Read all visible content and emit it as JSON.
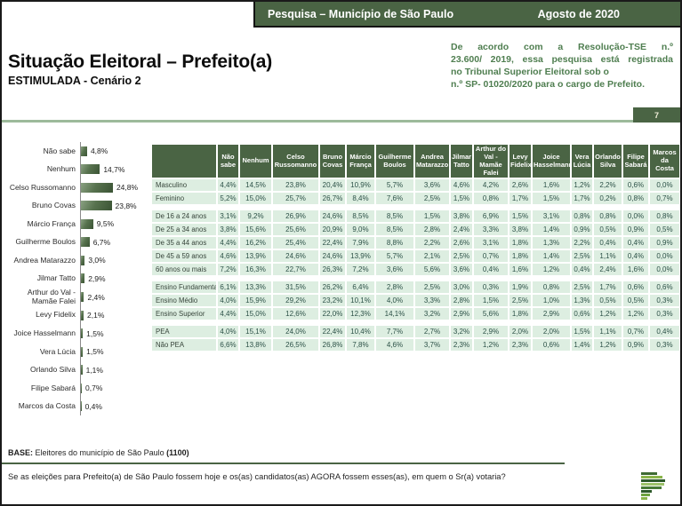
{
  "header": {
    "left": "Pesquisa – Município de São Paulo",
    "right": "Agosto de 2020"
  },
  "registration_note": {
    "lines": [
      "De acordo com a Resolução-TSE n.º",
      "23.600/ 2019, essa pesquisa está registrada",
      "no Tribunal Superior Eleitoral sob o",
      "n.º SP- 01020/2020 para o cargo de Prefeito."
    ]
  },
  "page_number": "7",
  "title": {
    "main": "Situação Eleitoral – Prefeito(a)",
    "sub": "ESTIMULADA - Cenário 2"
  },
  "chart_data": [
    {
      "type": "bar",
      "orientation": "horizontal",
      "title": "Situação Eleitoral – Prefeito(a) – ESTIMULADA - Cenário 2",
      "unit": "%",
      "xlim": [
        0,
        30
      ],
      "categories": [
        "Não sabe",
        "Nenhum",
        "Celso Russomanno",
        "Bruno Covas",
        "Márcio França",
        "Guilherme Boulos",
        "Andrea Matarazzo",
        "Jilmar Tatto",
        "Arthur do Val - Mamãe Falei",
        "Levy Fidelix",
        "Joice Hasselmann",
        "Vera Lúcia",
        "Orlando Silva",
        "Filipe Sabará",
        "Marcos da Costa"
      ],
      "values": [
        4.8,
        14.7,
        24.8,
        23.8,
        9.5,
        6.7,
        3.0,
        2.9,
        2.4,
        2.1,
        1.5,
        1.5,
        1.1,
        0.7,
        0.4
      ],
      "value_labels": [
        "4,8%",
        "14,7%",
        "24,8%",
        "23,8%",
        "9,5%",
        "6,7%",
        "3,0%",
        "2,9%",
        "2,4%",
        "2,1%",
        "1,5%",
        "1,5%",
        "1,1%",
        "0,7%",
        "0,4%"
      ]
    },
    {
      "type": "table",
      "columns": [
        "Não sabe",
        "Nenhum",
        "Celso Russomanno",
        "Bruno Covas",
        "Márcio França",
        "Guilherme Boulos",
        "Andrea Matarazzo",
        "Jilmar Tatto",
        "Arthur do Val - Mamãe Falei",
        "Levy Fidelix",
        "Joice Hasselmann",
        "Vera Lúcia",
        "Orlando Silva",
        "Filipe Sabará",
        "Marcos da Costa"
      ],
      "row_groups": [
        [
          {
            "label": "Masculino",
            "values": [
              "4,4%",
              "14,5%",
              "23,8%",
              "20,4%",
              "10,9%",
              "5,7%",
              "3,6%",
              "4,6%",
              "4,2%",
              "2,6%",
              "1,6%",
              "1,2%",
              "2,2%",
              "0,6%",
              "0,0%"
            ]
          },
          {
            "label": "Feminino",
            "values": [
              "5,2%",
              "15,0%",
              "25,7%",
              "26,7%",
              "8,4%",
              "7,6%",
              "2,5%",
              "1,5%",
              "0,8%",
              "1,7%",
              "1,5%",
              "1,7%",
              "0,2%",
              "0,8%",
              "0,7%"
            ]
          }
        ],
        [
          {
            "label": "De 16 a 24 anos",
            "values": [
              "3,1%",
              "9,2%",
              "26,9%",
              "24,6%",
              "8,5%",
              "8,5%",
              "1,5%",
              "3,8%",
              "6,9%",
              "1,5%",
              "3,1%",
              "0,8%",
              "0,8%",
              "0,0%",
              "0,8%"
            ]
          },
          {
            "label": "De 25 a 34 anos",
            "values": [
              "3,8%",
              "15,6%",
              "25,6%",
              "20,9%",
              "9,0%",
              "8,5%",
              "2,8%",
              "2,4%",
              "3,3%",
              "3,8%",
              "1,4%",
              "0,9%",
              "0,5%",
              "0,9%",
              "0,5%"
            ]
          },
          {
            "label": "De 35 a 44 anos",
            "values": [
              "4,4%",
              "16,2%",
              "25,4%",
              "22,4%",
              "7,9%",
              "8,8%",
              "2,2%",
              "2,6%",
              "3,1%",
              "1,8%",
              "1,3%",
              "2,2%",
              "0,4%",
              "0,4%",
              "0,9%"
            ]
          },
          {
            "label": "De 45 a 59 anos",
            "values": [
              "4,6%",
              "13,9%",
              "24,6%",
              "24,6%",
              "13,9%",
              "5,7%",
              "2,1%",
              "2,5%",
              "0,7%",
              "1,8%",
              "1,4%",
              "2,5%",
              "1,1%",
              "0,4%",
              "0,0%"
            ]
          },
          {
            "label": "60 anos ou mais",
            "values": [
              "7,2%",
              "16,3%",
              "22,7%",
              "26,3%",
              "7,2%",
              "3,6%",
              "5,6%",
              "3,6%",
              "0,4%",
              "1,6%",
              "1,2%",
              "0,4%",
              "2,4%",
              "1,6%",
              "0,0%"
            ]
          }
        ],
        [
          {
            "label": "Ensino Fundamental",
            "values": [
              "6,1%",
              "13,3%",
              "31,5%",
              "26,2%",
              "6,4%",
              "2,8%",
              "2,5%",
              "3,0%",
              "0,3%",
              "1,9%",
              "0,8%",
              "2,5%",
              "1,7%",
              "0,6%",
              "0,6%"
            ]
          },
          {
            "label": "Ensino Médio",
            "values": [
              "4,0%",
              "15,9%",
              "29,2%",
              "23,2%",
              "10,1%",
              "4,0%",
              "3,3%",
              "2,8%",
              "1,5%",
              "2,5%",
              "1,0%",
              "1,3%",
              "0,5%",
              "0,5%",
              "0,3%"
            ]
          },
          {
            "label": "Ensino Superior",
            "values": [
              "4,4%",
              "15,0%",
              "12,6%",
              "22,0%",
              "12,3%",
              "14,1%",
              "3,2%",
              "2,9%",
              "5,6%",
              "1,8%",
              "2,9%",
              "0,6%",
              "1,2%",
              "1,2%",
              "0,3%"
            ]
          }
        ],
        [
          {
            "label": "PEA",
            "values": [
              "4,0%",
              "15,1%",
              "24,0%",
              "22,4%",
              "10,4%",
              "7,7%",
              "2,7%",
              "3,2%",
              "2,9%",
              "2,0%",
              "2,0%",
              "1,5%",
              "1,1%",
              "0,7%",
              "0,4%"
            ]
          },
          {
            "label": "Não PEA",
            "values": [
              "6,6%",
              "13,8%",
              "26,5%",
              "26,8%",
              "7,8%",
              "4,6%",
              "3,7%",
              "2,3%",
              "1,2%",
              "2,3%",
              "0,6%",
              "1,4%",
              "1,2%",
              "0,9%",
              "0,3%"
            ]
          }
        ]
      ]
    }
  ],
  "footer": {
    "base_label": "BASE:",
    "base_text": " Eleitores do município de São Paulo ",
    "base_count": "(1100)",
    "question": "Se as eleições para Prefeito(a) de São Paulo fossem hoje e os(as) candidatos(as) AGORA fossem esses(as), em quem o Sr(a) votaria?"
  },
  "colors": {
    "dark_green": "#4a6444",
    "cell_green": "#ddeee1",
    "divider_green": "#9dba9b",
    "note_green": "#4f7e50",
    "table_text_green": "#2c5147"
  }
}
